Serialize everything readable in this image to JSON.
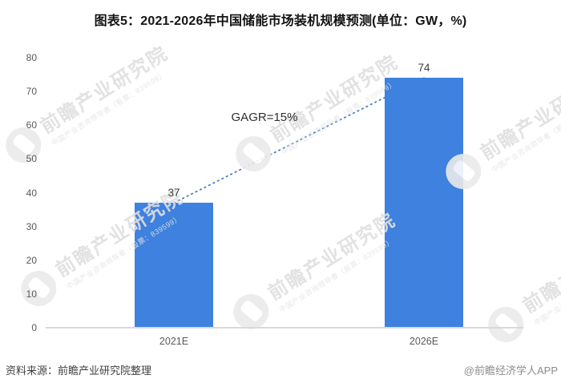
{
  "title": "图表5：2021-2026年中国储能市场装机规模预测(单位：GW，%)",
  "chart_data": {
    "type": "bar",
    "categories": [
      "2021E",
      "2026E"
    ],
    "values": [
      37,
      74
    ],
    "value_labels": [
      "37",
      "74"
    ],
    "annotation": "GAGR=15%",
    "ylim": [
      0,
      80
    ],
    "yticks": [
      0,
      10,
      20,
      30,
      40,
      50,
      60,
      70,
      80
    ],
    "grid": false,
    "legend": "none",
    "bar_color": "#3E81DE",
    "trendline": {
      "style": "dotted",
      "color": "#4D7EC0",
      "from": {
        "category": "2021E",
        "value": 37
      },
      "to": {
        "category": "2026E",
        "value": 74
      }
    }
  },
  "footer": {
    "source": "资料来源：前瞻产业研究院整理",
    "credit": "@前瞻经济学人APP"
  },
  "watermark": {
    "big_text": "前瞻产业研究院",
    "small_text": "中国产业咨询领导者（股票：839599）"
  },
  "colors": {
    "bar": "#3E81DE",
    "axis_line": "#D9D9D9",
    "tick_text": "#595959",
    "value_text": "#3D3D3D",
    "title_text": "#141414",
    "annotation_text": "#2E2E2E",
    "source_text": "#3F3F3F",
    "credit_text": "#8C8C8C",
    "trendline": "#4D7EC0",
    "watermark_text": "#DFDFDF"
  }
}
